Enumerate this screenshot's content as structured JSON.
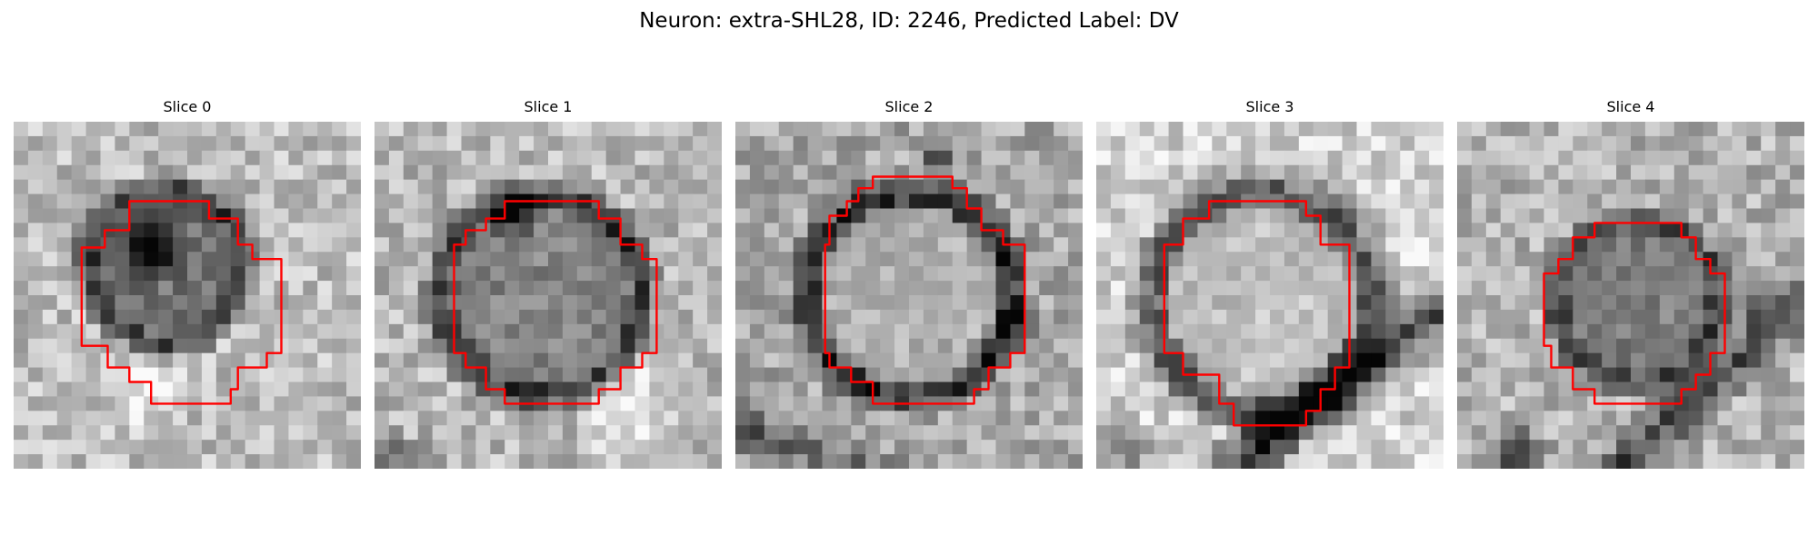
{
  "figure": {
    "title": "Neuron: extra-SHL28, ID: 2246, Predicted Label: DV",
    "outline_color": "#ff0000",
    "image_style": "grayscale pixelated microscopy crop"
  },
  "panels": [
    {
      "title": "Slice 0"
    },
    {
      "title": "Slice 1"
    },
    {
      "title": "Slice 2"
    },
    {
      "title": "Slice 3"
    },
    {
      "title": "Slice 4"
    }
  ]
}
